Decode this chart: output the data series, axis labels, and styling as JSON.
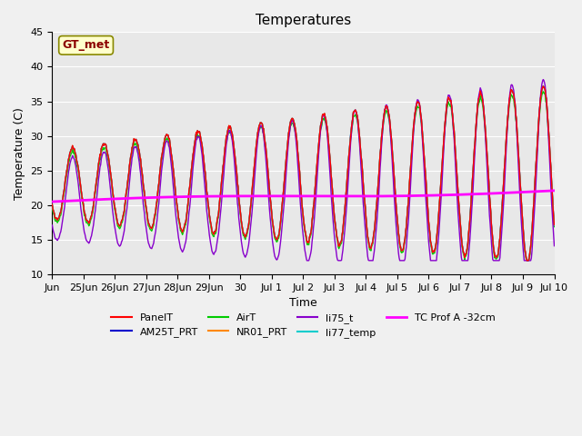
{
  "title": "Temperatures",
  "xlabel": "Time",
  "ylabel": "Temperature (C)",
  "ylim": [
    10,
    45
  ],
  "fig_facecolor": "#f0f0f0",
  "ax_facecolor": "#e8e8e8",
  "gt_met_label": "GT_met",
  "legend_entries": [
    "PanelT",
    "AM25T_PRT",
    "AirT",
    "NR01_PRT",
    "li75_t",
    "li77_temp",
    "TC Prof A -32cm"
  ],
  "line_colors": [
    "#ff0000",
    "#0000cc",
    "#00cc00",
    "#ff8800",
    "#8800cc",
    "#00cccc",
    "#ff00ff"
  ],
  "x_tick_positions": [
    0,
    1,
    2,
    3,
    4,
    5,
    6,
    7,
    8,
    9,
    10,
    11,
    12,
    13,
    14,
    15,
    16
  ],
  "x_tick_labels": [
    "Jun",
    "25Jun",
    "26Jun",
    "27Jun",
    "28Jun",
    "29Jun",
    "30",
    "Jul 1",
    "Jul 2",
    "Jul 3",
    "Jul 4",
    "Jul 5",
    "Jul 6",
    "Jul 7",
    "Jul 8",
    "Jul 9",
    "Jul 10"
  ],
  "yticks": [
    10,
    15,
    20,
    25,
    30,
    35,
    40,
    45
  ],
  "n_days": 16,
  "pts_per_day": 48
}
